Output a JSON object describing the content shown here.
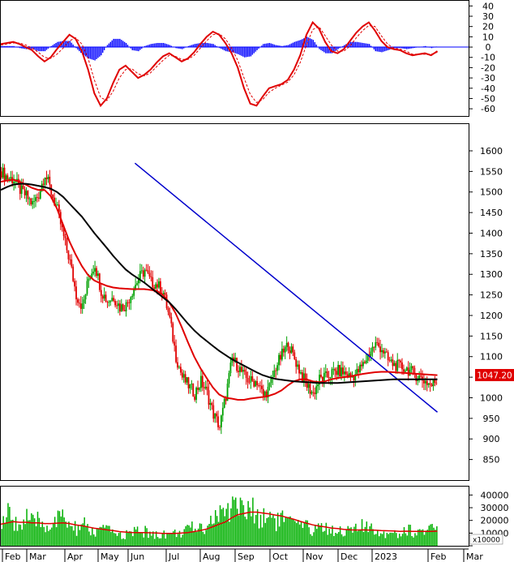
{
  "chart_data": [
    {
      "panel": "macd",
      "type": "line",
      "y_ticks": [
        40,
        30,
        20,
        10,
        0,
        -10,
        -20,
        -30,
        -40,
        -50,
        -60
      ],
      "ylim": [
        -67,
        45
      ],
      "x": [
        0,
        4,
        8,
        12,
        16,
        20,
        24,
        28,
        32,
        36,
        40,
        44,
        48,
        52,
        56,
        60,
        64,
        68,
        72,
        76,
        80,
        84,
        88,
        92,
        96,
        100,
        104,
        108,
        112,
        116,
        120,
        124,
        128,
        132,
        136,
        140,
        144,
        148,
        152,
        156,
        160,
        164,
        168,
        172,
        176,
        180,
        184,
        188,
        192,
        196,
        200,
        204,
        208,
        212,
        216,
        220,
        224,
        228,
        232,
        236,
        240,
        244,
        248,
        252,
        256,
        260,
        264,
        268,
        272,
        276,
        280
      ],
      "series": [
        {
          "kind": "macd_line",
          "color": "#e00000",
          "values": [
            3,
            4,
            5,
            3,
            0,
            -3,
            -9,
            -14,
            -10,
            -2,
            5,
            12,
            8,
            -4,
            -22,
            -45,
            -57,
            -50,
            -35,
            -22,
            -18,
            -24,
            -30,
            -27,
            -22,
            -15,
            -9,
            -6,
            -10,
            -14,
            -11,
            -5,
            3,
            10,
            15,
            12,
            4,
            -6,
            -20,
            -40,
            -55,
            -57,
            -48,
            -40,
            -38,
            -36,
            -32,
            -22,
            -8,
            12,
            24,
            18,
            5,
            -4,
            -6,
            -2,
            6,
            14,
            20,
            24,
            16,
            6,
            0,
            -2,
            -3,
            -6,
            -8,
            -7,
            -6,
            -8,
            -4
          ]
        },
        {
          "kind": "signal_line",
          "color": "#e00000",
          "dashed": true,
          "values": [
            2,
            3,
            4,
            4,
            2,
            -1,
            -5,
            -10,
            -11,
            -7,
            -1,
            6,
            9,
            3,
            -11,
            -32,
            -49,
            -52,
            -43,
            -30,
            -22,
            -21,
            -26,
            -28,
            -25,
            -19,
            -13,
            -8,
            -9,
            -12,
            -12,
            -8,
            -1,
            6,
            12,
            13,
            8,
            -1,
            -13,
            -30,
            -46,
            -54,
            -51,
            -44,
            -40,
            -37,
            -34,
            -27,
            -15,
            2,
            17,
            20,
            11,
            2,
            -4,
            -4,
            1,
            9,
            16,
            21,
            20,
            11,
            3,
            -1,
            -2,
            -4,
            -7,
            -7,
            -7,
            -7,
            -5
          ]
        },
        {
          "kind": "histogram",
          "color": "#0000ff",
          "values": [
            1,
            1,
            1,
            -1,
            -2,
            -2,
            -4,
            -4,
            1,
            5,
            6,
            6,
            -1,
            -7,
            -11,
            -13,
            -8,
            2,
            8,
            8,
            4,
            -3,
            -4,
            1,
            3,
            4,
            4,
            2,
            -1,
            -2,
            1,
            3,
            4,
            4,
            3,
            -1,
            -4,
            -5,
            -7,
            -10,
            -9,
            -3,
            3,
            4,
            2,
            1,
            2,
            5,
            7,
            10,
            7,
            -2,
            -6,
            -6,
            -2,
            2,
            5,
            5,
            4,
            3,
            -4,
            -5,
            -3,
            -1,
            -1,
            -2,
            -1,
            0,
            1,
            -1,
            1
          ]
        }
      ]
    },
    {
      "panel": "price",
      "type": "candlestick",
      "y_ticks": [
        1600,
        1550,
        1500,
        1450,
        1400,
        1350,
        1300,
        1250,
        1200,
        1150,
        1100,
        1050,
        1000,
        950,
        900,
        850
      ],
      "ylim": [
        800,
        1665
      ],
      "x_labels": [
        "Feb",
        "Mar",
        "Apr",
        "May",
        "Jun",
        "Jul",
        "Aug",
        "Sep",
        "Oct",
        "Nov",
        "Dec",
        "2023",
        "Feb",
        "Mar"
      ],
      "last_price_label": "1047.20",
      "x": [
        0,
        4,
        8,
        12,
        16,
        20,
        24,
        28,
        32,
        36,
        40,
        44,
        48,
        52,
        56,
        60,
        64,
        68,
        72,
        76,
        80,
        84,
        88,
        92,
        96,
        100,
        104,
        108,
        112,
        116,
        120,
        124,
        128,
        132,
        136,
        140,
        144,
        148,
        152,
        156,
        160,
        164,
        168,
        172,
        176,
        180,
        184,
        188,
        192,
        196,
        200,
        204,
        208,
        212,
        216,
        220,
        224,
        228,
        232,
        236,
        240,
        244,
        248,
        252,
        256,
        260,
        264,
        268,
        272,
        276,
        280
      ],
      "close": [
        1550,
        1535,
        1530,
        1505,
        1490,
        1470,
        1495,
        1545,
        1500,
        1455,
        1390,
        1330,
        1250,
        1220,
        1290,
        1325,
        1260,
        1235,
        1245,
        1220,
        1225,
        1260,
        1290,
        1310,
        1280,
        1275,
        1255,
        1190,
        1100,
        1050,
        1030,
        1010,
        1040,
        1010,
        960,
        930,
        1005,
        1095,
        1075,
        1050,
        1040,
        1040,
        1005,
        1025,
        1075,
        1105,
        1130,
        1095,
        1060,
        1030,
        1010,
        1045,
        1050,
        1060,
        1065,
        1060,
        1050,
        1060,
        1080,
        1110,
        1130,
        1120,
        1090,
        1080,
        1075,
        1070,
        1060,
        1050,
        1040,
        1030,
        1047.2
      ],
      "ma_red": [
        1525,
        1528,
        1530,
        1525,
        1518,
        1510,
        1505,
        1505,
        1490,
        1460,
        1420,
        1380,
        1348,
        1320,
        1298,
        1285,
        1278,
        1272,
        1268,
        1266,
        1265,
        1264,
        1264,
        1264,
        1262,
        1260,
        1250,
        1232,
        1206,
        1172,
        1135,
        1100,
        1072,
        1048,
        1025,
        1008,
        1000,
        998,
        995,
        995,
        998,
        1000,
        1002,
        1005,
        1010,
        1018,
        1030,
        1040,
        1045,
        1045,
        1040,
        1038,
        1040,
        1045,
        1048,
        1050,
        1052,
        1055,
        1058,
        1060,
        1062,
        1063,
        1063,
        1062,
        1061,
        1060,
        1059,
        1058,
        1057,
        1056,
        1055
      ],
      "ma_black": [
        1505,
        1512,
        1518,
        1520,
        1520,
        1518,
        1515,
        1512,
        1508,
        1500,
        1488,
        1472,
        1456,
        1440,
        1420,
        1400,
        1382,
        1364,
        1345,
        1328,
        1312,
        1300,
        1290,
        1280,
        1268,
        1256,
        1244,
        1232,
        1216,
        1198,
        1180,
        1164,
        1150,
        1138,
        1126,
        1114,
        1104,
        1094,
        1086,
        1078,
        1070,
        1062,
        1055,
        1050,
        1046,
        1044,
        1042,
        1040,
        1039,
        1038,
        1037,
        1036,
        1036,
        1036,
        1036,
        1037,
        1038,
        1039,
        1040,
        1041,
        1042,
        1043,
        1044,
        1045,
        1045,
        1045,
        1045,
        1045,
        1045,
        1045,
        1045
      ],
      "trendline": {
        "color": "#0000cc",
        "from": {
          "x": 86,
          "y": 1570
        },
        "to": {
          "x": 280,
          "y": 965
        }
      }
    },
    {
      "panel": "volume",
      "type": "bar",
      "unit_label": "x10000",
      "y_ticks": [
        40000,
        30000,
        20000,
        10000,
        0
      ],
      "ylim": [
        0,
        46000
      ],
      "x": [
        0,
        4,
        8,
        12,
        16,
        20,
        24,
        28,
        32,
        36,
        40,
        44,
        48,
        52,
        56,
        60,
        64,
        68,
        72,
        76,
        80,
        84,
        88,
        92,
        96,
        100,
        104,
        108,
        112,
        116,
        120,
        124,
        128,
        132,
        136,
        140,
        144,
        148,
        152,
        156,
        160,
        164,
        168,
        172,
        176,
        180,
        184,
        188,
        192,
        196,
        200,
        204,
        208,
        212,
        216,
        220,
        224,
        228,
        232,
        236,
        240,
        244,
        248,
        252,
        256,
        260,
        264,
        268,
        272,
        276,
        280
      ],
      "values": [
        18000,
        24000,
        20000,
        16000,
        22000,
        17000,
        20000,
        15000,
        18000,
        20000,
        22000,
        15000,
        13000,
        17000,
        12000,
        10000,
        14000,
        11000,
        12000,
        8000,
        9000,
        10000,
        12000,
        11000,
        9000,
        8000,
        10000,
        9000,
        10000,
        11000,
        12000,
        15000,
        14000,
        18000,
        22000,
        25000,
        24000,
        38000,
        32000,
        26000,
        28000,
        24000,
        22000,
        26000,
        20000,
        22000,
        18000,
        16000,
        15000,
        14000,
        13000,
        16000,
        14000,
        12000,
        13000,
        12000,
        11000,
        14000,
        15000,
        12000,
        13000,
        10000,
        12000,
        11000,
        9000,
        14000,
        10000,
        12000,
        11000,
        13000,
        12000
      ],
      "ma_red": [
        17000,
        18000,
        19000,
        18500,
        18500,
        18000,
        18000,
        17500,
        17500,
        17800,
        18000,
        17500,
        16500,
        15800,
        14800,
        13800,
        13200,
        12500,
        12000,
        11200,
        10800,
        10500,
        10400,
        10400,
        10200,
        10000,
        9800,
        9700,
        9800,
        10000,
        10400,
        11200,
        12000,
        13200,
        15000,
        17000,
        18800,
        22000,
        24500,
        25500,
        26500,
        26500,
        25800,
        25200,
        24200,
        23500,
        22200,
        20800,
        19200,
        17800,
        16500,
        15600,
        14800,
        14000,
        13600,
        13000,
        12500,
        12400,
        12500,
        12400,
        12300,
        12000,
        11800,
        11600,
        11400,
        11500,
        11400,
        11400,
        11300,
        11400,
        11500
      ],
      "ma_line_color": "#e00000"
    }
  ]
}
